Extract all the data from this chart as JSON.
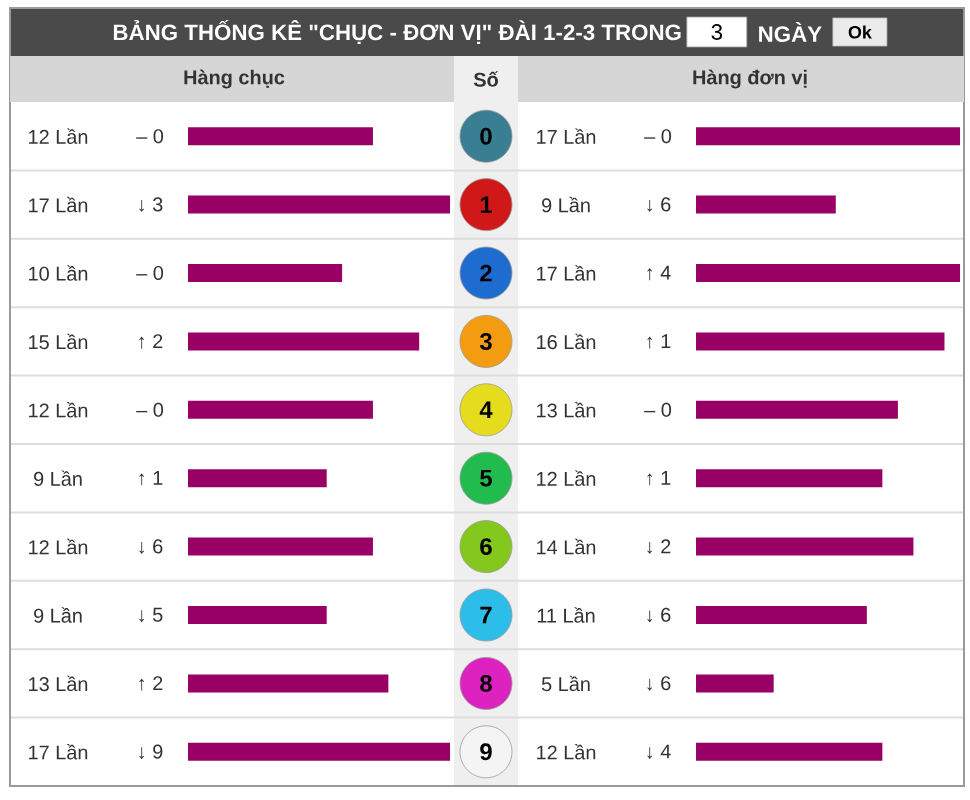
{
  "chart_data": [
    {
      "type": "other",
      "title": "BẢNG THỐNG KÊ \"CHỤC - ĐƠN VỊ\" ĐÀI 1-2-3 TRONG",
      "annotations": [
        "3",
        "NGÀY",
        "Ok"
      ]
    },
    {
      "type": "bar",
      "orientation": "horizontal",
      "title": "Hàng chục",
      "ylabel": "Số",
      "categories": [
        "0",
        "1",
        "2",
        "3",
        "4",
        "5",
        "6",
        "7",
        "8",
        "9"
      ],
      "values": [
        12,
        17,
        10,
        15,
        12,
        9,
        12,
        9,
        13,
        17
      ],
      "value_labels": [
        "12 Lần",
        "17 Lần",
        "10 Lần",
        "15 Lần",
        "12 Lần",
        "9 Lần",
        "12 Lần",
        "9 Lần",
        "13 Lần",
        "17 Lần"
      ],
      "annotations": [
        "– 0",
        "↓ 3",
        "– 0",
        "↑ 2",
        "– 0",
        "↑ 1",
        "↓ 6",
        "↓ 5",
        "↑ 2",
        "↓ 9"
      ],
      "color": "#990066",
      "xlim": [
        0,
        17
      ],
      "tick_labels": "y"
    },
    {
      "type": "bar",
      "orientation": "horizontal",
      "title": "Hàng đơn vị",
      "categories": [
        "0",
        "1",
        "2",
        "3",
        "4",
        "5",
        "6",
        "7",
        "8",
        "9"
      ],
      "values": [
        17,
        9,
        17,
        16,
        13,
        12,
        14,
        11,
        5,
        12
      ],
      "value_labels": [
        "17 Lần",
        "9 Lần",
        "17 Lần",
        "16 Lần",
        "13 Lần",
        "12 Lần",
        "14 Lần",
        "11 Lần",
        "5 Lần",
        "12 Lần"
      ],
      "annotations": [
        "– 0",
        "↓ 6",
        "↑ 4",
        "↑ 1",
        "– 0",
        "↑ 1",
        "↓ 2",
        "↓ 6",
        "↓ 6",
        "↓ 4"
      ],
      "color": "#990066",
      "xlim": [
        0,
        17
      ],
      "tick_labels": false
    }
  ]
}
